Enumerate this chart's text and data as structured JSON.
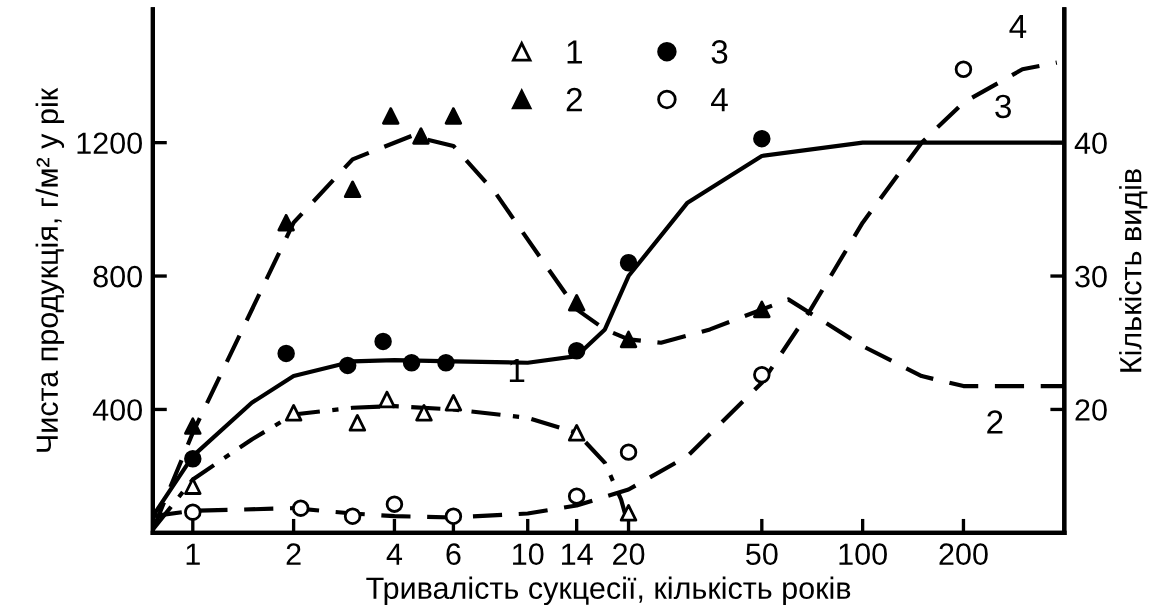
{
  "chart_data": {
    "type": "scatter",
    "xlabel": "Тривалість сукцесії, кількість років",
    "ylabel": "Чиста продукція, г/м² у рік",
    "y2label": "Кількість видів",
    "log": "x",
    "xlim": [
      0.76,
      400
    ],
    "xticks": [
      1,
      2,
      4,
      6,
      10,
      14,
      20,
      50,
      100,
      200
    ],
    "ylim": [
      30,
      1600
    ],
    "yticks": [
      400,
      800,
      1200
    ],
    "y2lim": [
      10.75,
      50
    ],
    "y2ticks": [
      20,
      30,
      40
    ],
    "grid": false,
    "legend": "top",
    "series": [
      {
        "name": "1",
        "marker": "triangle",
        "color": "#ffffff",
        "x": [
          1,
          2,
          3.1,
          3.8,
          4.9,
          6,
          14,
          20
        ],
        "values": [
          170,
          390,
          360,
          430,
          390,
          420,
          330,
          90
        ]
      },
      {
        "name": "2",
        "marker": "triangle",
        "color": "#000000",
        "x": [
          1,
          1.9,
          3,
          3.9,
          4.8,
          6,
          14,
          20,
          50
        ],
        "values": [
          350,
          960,
          1060,
          1280,
          1220,
          1280,
          720,
          610,
          700
        ]
      },
      {
        "name": "3",
        "marker": "circle",
        "color": "#000000",
        "axis": "y2",
        "x": [
          1,
          1.9,
          2.9,
          3.7,
          4.5,
          5.7,
          14,
          20,
          50
        ],
        "values": [
          16.3,
          24.2,
          23.3,
          25.1,
          23.5,
          23.5,
          24.4,
          31,
          40.3
        ]
      },
      {
        "name": "4",
        "marker": "circle",
        "color": "#ffffff",
        "axis": "y2",
        "x": [
          1,
          2.1,
          3,
          4,
          6,
          14,
          20,
          50,
          200
        ],
        "values": [
          12.3,
          12.6,
          12,
          12.9,
          12,
          13.5,
          16.8,
          22.6,
          45.5
        ]
      },
      {
        "type": "line",
        "line_style": "dashdot",
        "color": "#000000",
        "x": [
          0.76,
          1,
          1.5,
          2,
          3,
          4,
          6,
          10,
          14,
          17,
          19,
          20
        ],
        "values": [
          40,
          190,
          310,
          385,
          405,
          410,
          400,
          375,
          330,
          240,
          130,
          50
        ]
      },
      {
        "type": "line",
        "line_style": "dashed",
        "color": "#000000",
        "x": [
          0.76,
          1,
          2,
          3,
          4.5,
          6,
          8,
          11,
          14,
          17,
          20,
          25,
          35,
          60,
          100,
          150,
          200,
          400
        ],
        "values": [
          40,
          330,
          960,
          1150,
          1220,
          1190,
          1050,
          850,
          700,
          640,
          610,
          600,
          640,
          730,
          590,
          500,
          470,
          470
        ]
      },
      {
        "type": "line",
        "line_style": "solid",
        "color": "#000000",
        "axis": "y2",
        "x": [
          0.76,
          1,
          1.5,
          2,
          3,
          4,
          6,
          10,
          14,
          17,
          20,
          30,
          50,
          100,
          200,
          400
        ],
        "values": [
          12,
          16.5,
          20.5,
          22.5,
          23.6,
          23.7,
          23.6,
          23.5,
          24,
          26,
          30,
          35.5,
          39,
          40,
          40,
          40
        ]
      },
      {
        "type": "line",
        "line_style": "dashed",
        "color": "#000000",
        "axis": "y2",
        "x": [
          0.76,
          1,
          2,
          3,
          4,
          6,
          10,
          14,
          20,
          30,
          50,
          70,
          100,
          150,
          200,
          300,
          380
        ],
        "values": [
          12,
          12.4,
          12.6,
          12.2,
          12,
          11.9,
          12.2,
          12.8,
          14,
          16.5,
          22,
          27.5,
          34,
          40,
          43,
          45.5,
          46
        ]
      }
    ],
    "annotations": [
      {
        "text": "1",
        "x": 10,
        "y": 375
      },
      {
        "text": "2",
        "x": 400,
        "y": 470
      },
      {
        "text": "3",
        "x": 400,
        "y": 1200
      },
      {
        "text": "4",
        "x": 380,
        "y": 1440
      }
    ]
  }
}
